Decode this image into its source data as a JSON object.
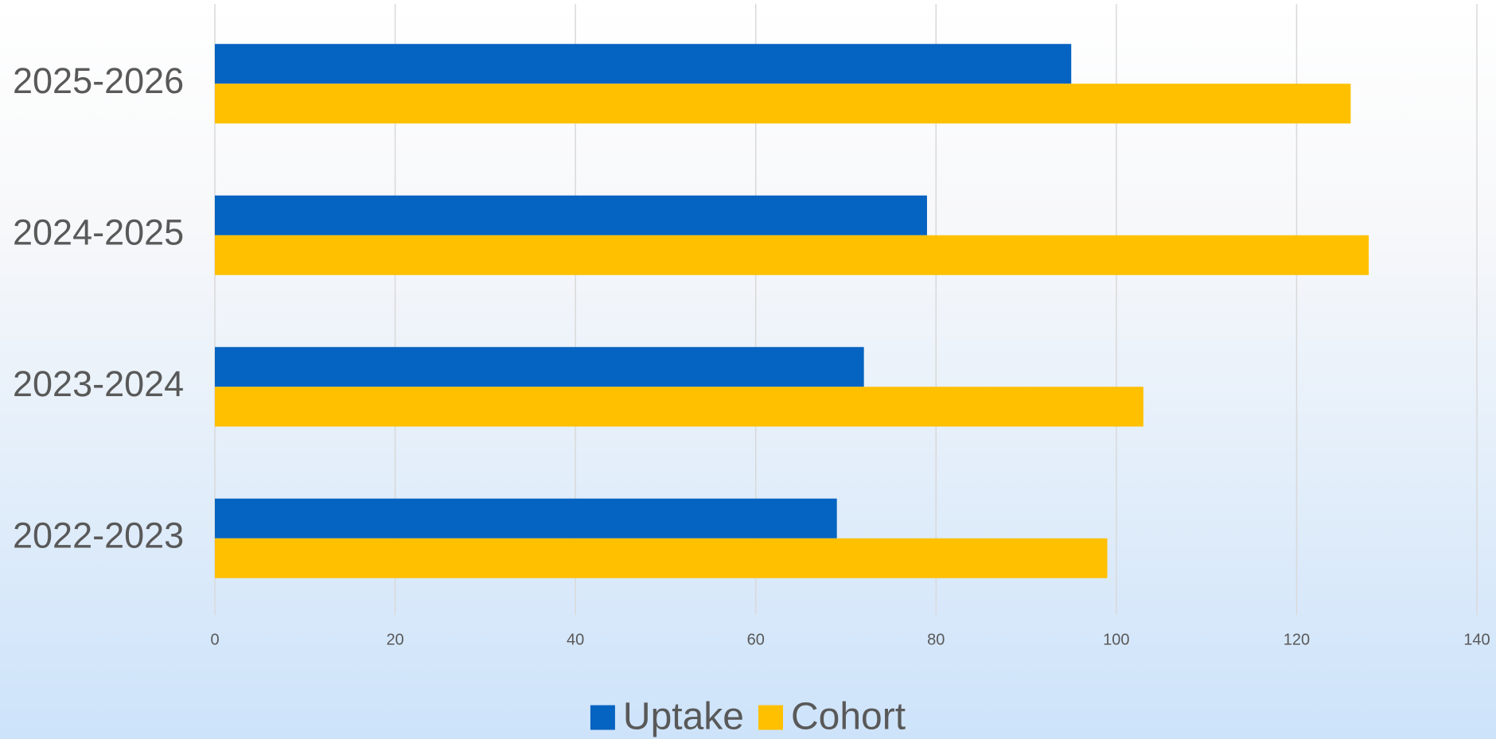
{
  "chart_data": {
    "type": "bar",
    "orientation": "horizontal",
    "categories": [
      "2025-2026",
      "2024-2025",
      "2023-2024",
      "2022-2023"
    ],
    "series": [
      {
        "name": "Uptake",
        "color": "#0563c1",
        "values": [
          95,
          79,
          72,
          69
        ]
      },
      {
        "name": "Cohort",
        "color": "#ffc000",
        "values": [
          126,
          128,
          103,
          99
        ]
      }
    ],
    "xlim": [
      0,
      140
    ],
    "xticks": [
      0,
      20,
      40,
      60,
      80,
      100,
      120,
      140
    ],
    "grid": true,
    "legend": "bottom"
  }
}
